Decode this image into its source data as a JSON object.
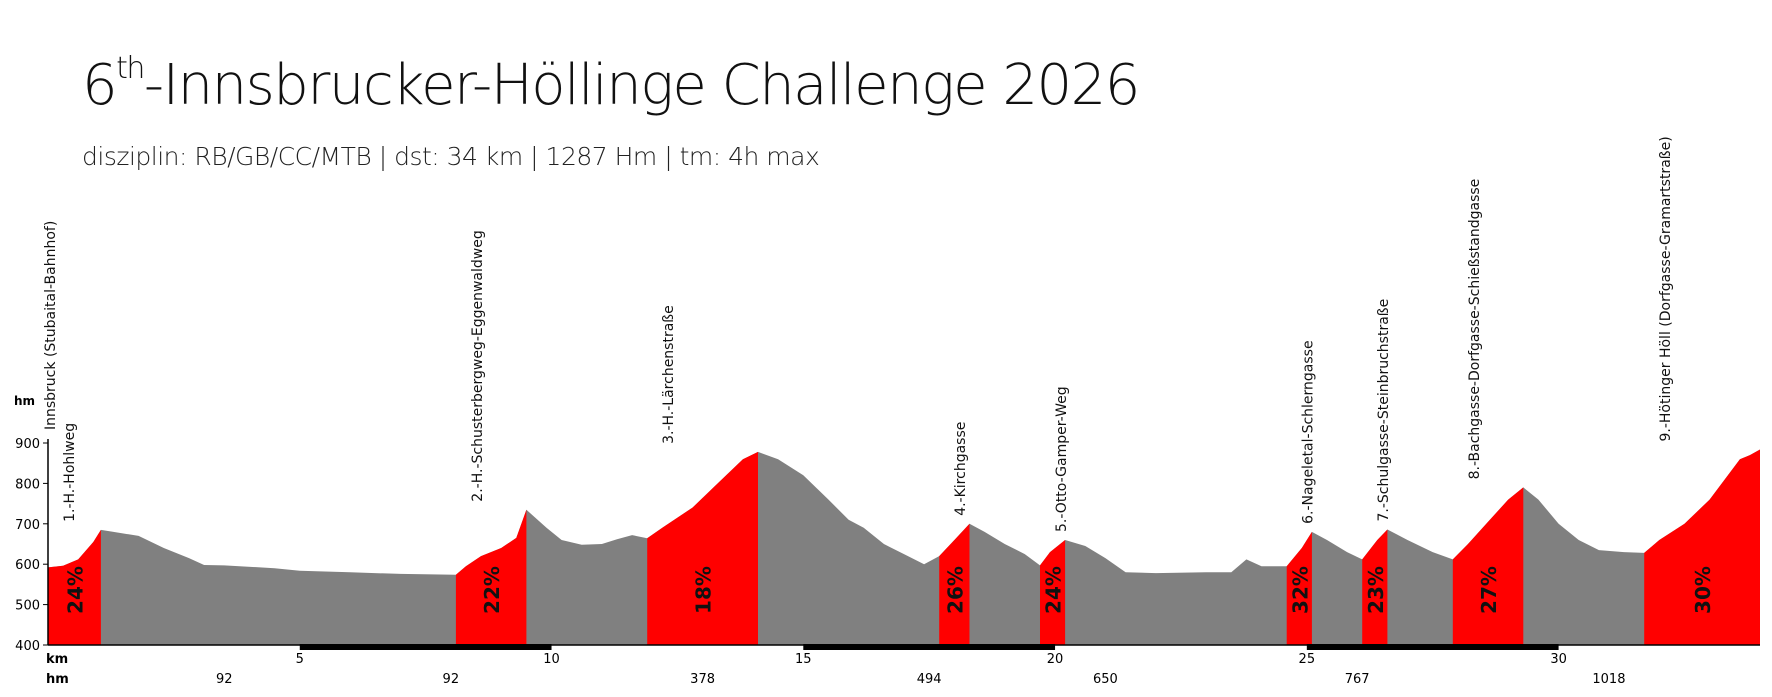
{
  "title": {
    "prefix": "6",
    "sup": "th",
    "rest": "-Innsbrucker-Höllinge Challenge 2026"
  },
  "subtitle": "disziplin: RB/GB/CC/MTB | dst: 34 km | 1287 Hm | tm: 4h max",
  "colors": {
    "profile": "#808080",
    "climb": "#ff0000",
    "axis": "#000000"
  },
  "chart_data": {
    "type": "area",
    "ylabel": "hm",
    "xlabel": "km",
    "ylim": [
      400,
      900
    ],
    "xlim": [
      0,
      34
    ],
    "yticks": [
      "400",
      "500",
      "600",
      "700",
      "800",
      "900"
    ],
    "xticks": [
      {
        "x": 5,
        "label": "5"
      },
      {
        "x": 10,
        "label": "10"
      },
      {
        "x": 15,
        "label": "15"
      },
      {
        "x": 20,
        "label": "20"
      },
      {
        "x": 25,
        "label": "25"
      },
      {
        "x": 30,
        "label": "30"
      }
    ],
    "hm_label": "hm",
    "hm_values": [
      {
        "x": 3.5,
        "label": "92"
      },
      {
        "x": 8.0,
        "label": "92"
      },
      {
        "x": 13.0,
        "label": "378"
      },
      {
        "x": 17.5,
        "label": "494"
      },
      {
        "x": 21.0,
        "label": "650"
      },
      {
        "x": 26.0,
        "label": "767"
      },
      {
        "x": 31.0,
        "label": "1018"
      }
    ],
    "start_label": "Innsbruck (Stubaital-Bahnhof)",
    "profile": [
      [
        0.0,
        592
      ],
      [
        0.3,
        596
      ],
      [
        0.6,
        612
      ],
      [
        0.9,
        655
      ],
      [
        1.05,
        685
      ],
      [
        1.3,
        680
      ],
      [
        1.8,
        670
      ],
      [
        2.3,
        640
      ],
      [
        2.8,
        615
      ],
      [
        3.1,
        598
      ],
      [
        3.5,
        597
      ],
      [
        4.5,
        590
      ],
      [
        5.0,
        584
      ],
      [
        6.0,
        580
      ],
      [
        7.0,
        576
      ],
      [
        8.1,
        574
      ],
      [
        8.3,
        595
      ],
      [
        8.6,
        620
      ],
      [
        9.0,
        640
      ],
      [
        9.3,
        665
      ],
      [
        9.5,
        735
      ],
      [
        9.9,
        690
      ],
      [
        10.2,
        660
      ],
      [
        10.6,
        648
      ],
      [
        11.0,
        650
      ],
      [
        11.3,
        662
      ],
      [
        11.6,
        672
      ],
      [
        11.9,
        664
      ],
      [
        12.2,
        690
      ],
      [
        12.8,
        740
      ],
      [
        13.3,
        800
      ],
      [
        13.8,
        860
      ],
      [
        14.1,
        878
      ],
      [
        14.5,
        860
      ],
      [
        15.0,
        820
      ],
      [
        15.5,
        760
      ],
      [
        15.9,
        710
      ],
      [
        16.2,
        690
      ],
      [
        16.6,
        650
      ],
      [
        17.0,
        625
      ],
      [
        17.4,
        600
      ],
      [
        17.7,
        620
      ],
      [
        18.0,
        660
      ],
      [
        18.3,
        700
      ],
      [
        18.6,
        680
      ],
      [
        19.0,
        650
      ],
      [
        19.4,
        625
      ],
      [
        19.7,
        597
      ],
      [
        19.9,
        630
      ],
      [
        20.2,
        660
      ],
      [
        20.6,
        645
      ],
      [
        21.0,
        615
      ],
      [
        21.4,
        580
      ],
      [
        22.0,
        578
      ],
      [
        23.0,
        580
      ],
      [
        23.5,
        580
      ],
      [
        23.8,
        612
      ],
      [
        24.1,
        595
      ],
      [
        24.6,
        595
      ],
      [
        24.9,
        640
      ],
      [
        25.1,
        680
      ],
      [
        25.4,
        660
      ],
      [
        25.8,
        630
      ],
      [
        26.1,
        612
      ],
      [
        26.4,
        660
      ],
      [
        26.6,
        686
      ],
      [
        27.0,
        660
      ],
      [
        27.5,
        630
      ],
      [
        27.9,
        612
      ],
      [
        28.2,
        650
      ],
      [
        28.6,
        705
      ],
      [
        29.0,
        760
      ],
      [
        29.3,
        790
      ],
      [
        29.6,
        760
      ],
      [
        30.0,
        700
      ],
      [
        30.4,
        660
      ],
      [
        30.8,
        635
      ],
      [
        31.3,
        630
      ],
      [
        31.7,
        628
      ],
      [
        32.0,
        660
      ],
      [
        32.5,
        700
      ],
      [
        33.0,
        760
      ],
      [
        33.3,
        810
      ],
      [
        33.6,
        860
      ],
      [
        33.8,
        870
      ],
      [
        34.0,
        884
      ]
    ],
    "climbs": [
      {
        "label": "1.-H.-Hohlweg",
        "x0": 0.0,
        "x1": 1.05,
        "grade": "24%"
      },
      {
        "label": "2.-H.-Schusterbergweg-Eggenwaldweg",
        "x0": 8.1,
        "x1": 9.5,
        "grade": "22%"
      },
      {
        "label": "3.-H.-Lärchenstraße",
        "x0": 11.9,
        "x1": 14.1,
        "grade": "18%"
      },
      {
        "label": "4.-Kirchgasse",
        "x0": 17.7,
        "x1": 18.3,
        "grade": "26%"
      },
      {
        "label": "5.-Otto-Gamper-Weg",
        "x0": 19.7,
        "x1": 20.2,
        "grade": "24%"
      },
      {
        "label": "6.-Nageletal-Schlerngasse",
        "x0": 24.6,
        "x1": 25.1,
        "grade": "32%"
      },
      {
        "label": "7.-Schulgasse-Steinbruchstraße",
        "x0": 26.1,
        "x1": 26.6,
        "grade": "23%"
      },
      {
        "label": "8.-Bachgasse-Dorfgasse-Schießstandgasse",
        "x0": 27.9,
        "x1": 29.3,
        "grade": "27%"
      },
      {
        "label": "9.-Hötinger Höll (Dorfgasse-Gramartstraße)",
        "x0": 31.7,
        "x1": 34.0,
        "grade": "30%"
      }
    ]
  }
}
